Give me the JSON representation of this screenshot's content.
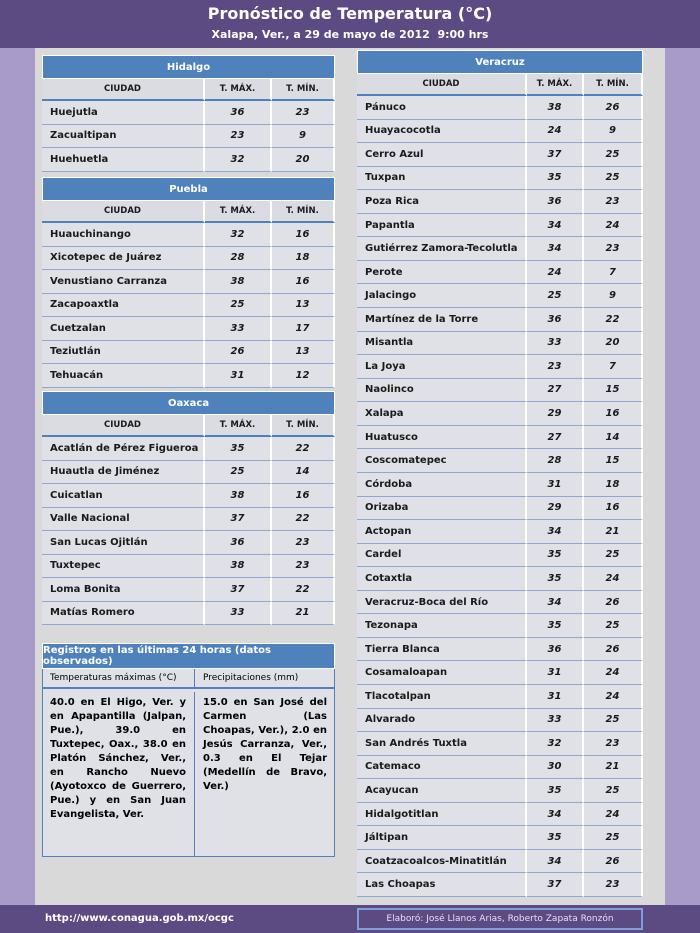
{
  "header": {
    "title": "Pronóstico de Temperatura (°C)",
    "subtitle": "Xalapa, Ver., a 29 de mayo de 2012  9:00 hrs"
  },
  "sections": [
    {
      "name": "Hidalgo",
      "columns": [
        "CIUDAD",
        "T. MÁX.",
        "T. MÍN."
      ],
      "rows": [
        [
          "Huejutla",
          36,
          23
        ],
        [
          "Zacualtipan",
          23,
          9
        ],
        [
          "Huehuetla",
          32,
          20
        ]
      ]
    },
    {
      "name": "Puebla",
      "columns": [
        "CIUDAD",
        "T. MÁX.",
        "T. MÍN."
      ],
      "rows": [
        [
          "Huauchinango",
          32,
          16
        ],
        [
          "Xicotepec de Juárez",
          28,
          18
        ],
        [
          "Venustiano Carranza",
          38,
          16
        ],
        [
          "Zacapoaxtla",
          25,
          13
        ],
        [
          "Cuetzalan",
          33,
          17
        ],
        [
          "Teziutlán",
          26,
          13
        ],
        [
          "Tehuacán",
          31,
          12
        ]
      ]
    },
    {
      "name": "Oaxaca",
      "columns": [
        "CIUDAD",
        "T. MÁX.",
        "T. MÍN."
      ],
      "rows": [
        [
          "Acatlán de Pérez Figueroa",
          35,
          22
        ],
        [
          "Huautla de Jiménez",
          25,
          14
        ],
        [
          "Cuicatlan",
          38,
          16
        ],
        [
          "Valle Nacional",
          37,
          22
        ],
        [
          "San Lucas Ojitlán",
          36,
          23
        ],
        [
          "Tuxtepec",
          38,
          23
        ],
        [
          "Loma Bonita",
          37,
          22
        ],
        [
          "Matías Romero",
          33,
          21
        ]
      ]
    },
    {
      "name": "Veracruz",
      "columns": [
        "CIUDAD",
        "T. MÁX.",
        "T. MÍN."
      ],
      "rows": [
        [
          "Pánuco",
          38,
          26
        ],
        [
          "Huayacocotla",
          24,
          9
        ],
        [
          "Cerro Azul",
          37,
          25
        ],
        [
          "Tuxpan",
          35,
          25
        ],
        [
          "Poza Rica",
          36,
          23
        ],
        [
          "Papantla",
          34,
          24
        ],
        [
          "Gutiérrez Zamora-Tecolutla",
          34,
          23
        ],
        [
          "Perote",
          24,
          7
        ],
        [
          "Jalacingo",
          25,
          9
        ],
        [
          "Martínez de la Torre",
          36,
          22
        ],
        [
          "Misantla",
          33,
          20
        ],
        [
          "La Joya",
          23,
          7
        ],
        [
          "Naolinco",
          27,
          15
        ],
        [
          "Xalapa",
          29,
          16
        ],
        [
          "Huatusco",
          27,
          14
        ],
        [
          "Coscomatepec",
          28,
          15
        ],
        [
          "Córdoba",
          31,
          18
        ],
        [
          "Orizaba",
          29,
          16
        ],
        [
          "Actopan",
          34,
          21
        ],
        [
          "Cardel",
          35,
          25
        ],
        [
          "Cotaxtla",
          35,
          24
        ],
        [
          "Veracruz-Boca del Río",
          34,
          26
        ],
        [
          "Tezonapa",
          35,
          25
        ],
        [
          "Tierra Blanca",
          36,
          26
        ],
        [
          "Cosamaloapan",
          31,
          24
        ],
        [
          "Tlacotalpan",
          31,
          24
        ],
        [
          "Alvarado",
          33,
          25
        ],
        [
          "San Andrés Tuxtla",
          32,
          23
        ],
        [
          "Catemaco",
          30,
          21
        ],
        [
          "Acayucan",
          35,
          25
        ],
        [
          "Hidalgotitlan",
          34,
          24
        ],
        [
          "Jáltipan",
          35,
          25
        ],
        [
          "Coatzacoalcos-Minatitlán",
          34,
          26
        ],
        [
          "Las Choapas",
          37,
          23
        ]
      ]
    }
  ],
  "observed": {
    "title": "Registros en las últimas 24 horas (datos observados)",
    "columns": [
      "Temperaturas máximas (°C)",
      "Precipitaciones (mm)"
    ],
    "texts": [
      "40.0 en El Higo, Ver. y en Apapantilla (Jalpan, Pue.), 39.0 en Tuxtepec, Oax., 38.0 en Platón Sánchez, Ver., en Rancho Nuevo (Ayotoxco de Guerrero, Pue.) y en San Juan Evangelista, Ver.",
      "15.0 en San José del Carmen (Las Choapas, Ver.), 2.0 en Jesús Carranza, Ver., 0.3 en El Tejar (Medellín de Bravo, Ver.)"
    ]
  },
  "footer": {
    "url": "http://www.conagua.gob.mx/ocgc",
    "credit": "Elaboró: José Llanos Arias, Roberto Zapata Ronzón"
  }
}
